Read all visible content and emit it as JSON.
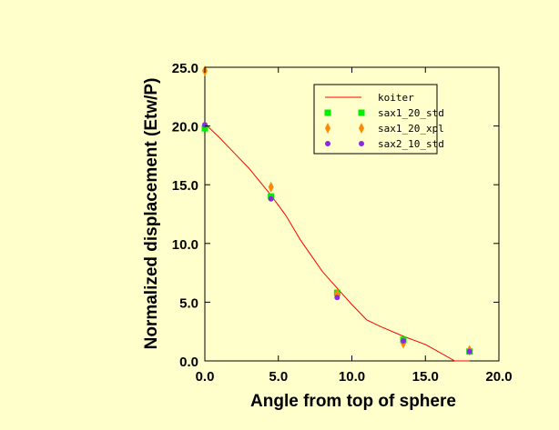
{
  "chart_data": {
    "type": "scatter",
    "title": "",
    "xlabel": "Angle from top of sphere",
    "ylabel": "Normalized displacement (Etw/P)",
    "xlim": [
      0,
      20
    ],
    "ylim": [
      0,
      25
    ],
    "xticks": [
      "0.0",
      "5.0",
      "10.0",
      "15.0",
      "20.0"
    ],
    "yticks": [
      "0.0",
      "5.0",
      "10.0",
      "15.0",
      "20.0",
      "25.0"
    ],
    "grid": false,
    "legend_position": "top-right",
    "series": [
      {
        "name": "koiter",
        "kind": "line",
        "color": "#ff0000",
        "x": [
          0,
          1,
          2,
          3,
          4.5,
          5.5,
          6.5,
          8,
          9,
          10,
          11,
          12,
          13.5,
          15,
          16,
          17,
          18
        ],
        "y": [
          20.2,
          19.0,
          17.7,
          16.4,
          14.1,
          12.4,
          10.3,
          7.6,
          6.2,
          4.8,
          3.5,
          2.9,
          2.1,
          1.4,
          0.7,
          0.0,
          0.0
        ]
      },
      {
        "name": "sax1_20_std",
        "kind": "marker",
        "marker": "square",
        "color": "#00ee00",
        "x": [
          0,
          4.5,
          9,
          13.5,
          18
        ],
        "y": [
          19.8,
          14.0,
          5.8,
          1.8,
          0.8
        ]
      },
      {
        "name": "sax1_20_xpl",
        "kind": "marker",
        "marker": "diamond",
        "color": "#ff8800",
        "x": [
          0,
          4.5,
          9,
          13.5,
          18
        ],
        "y": [
          24.7,
          14.8,
          5.7,
          1.5,
          0.9
        ]
      },
      {
        "name": "sax2_10_std",
        "kind": "marker",
        "marker": "circle",
        "color": "#8a2be2",
        "x": [
          0,
          4.5,
          9,
          13.5,
          18
        ],
        "y": [
          20.1,
          13.8,
          5.4,
          1.7,
          0.8
        ]
      }
    ]
  }
}
